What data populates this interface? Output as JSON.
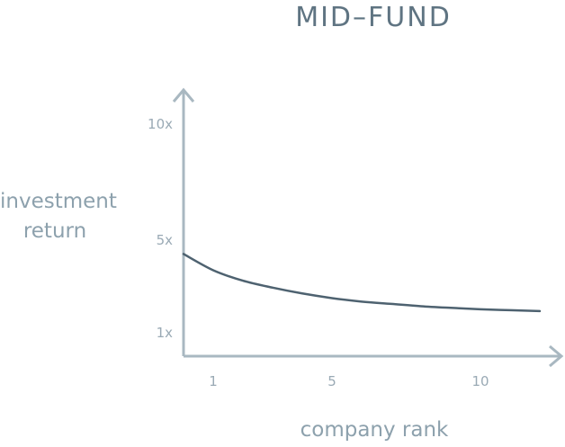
{
  "chart_data": {
    "type": "line",
    "title": "MID–FUND",
    "xlabel": "company rank",
    "ylabel": "investment return",
    "x_ticks": [
      {
        "value": 1,
        "label": "1"
      },
      {
        "value": 5,
        "label": "5"
      },
      {
        "value": 10,
        "label": "10"
      }
    ],
    "y_ticks": [
      {
        "value": 1,
        "label": "1x"
      },
      {
        "value": 5,
        "label": "5x"
      },
      {
        "value": 10,
        "label": "10x"
      }
    ],
    "xlim": [
      0,
      12
    ],
    "ylim": [
      0,
      11
    ],
    "grid": false,
    "colors": {
      "line": "#4e6270",
      "axes": "#a9b8c1"
    },
    "series": [
      {
        "x": [
          0,
          1,
          2,
          3,
          4,
          5,
          6,
          7,
          8,
          9,
          10,
          11,
          12
        ],
        "y": [
          4.4,
          3.7,
          3.25,
          2.95,
          2.7,
          2.5,
          2.35,
          2.25,
          2.15,
          2.08,
          2.02,
          1.98,
          1.94
        ]
      }
    ]
  }
}
